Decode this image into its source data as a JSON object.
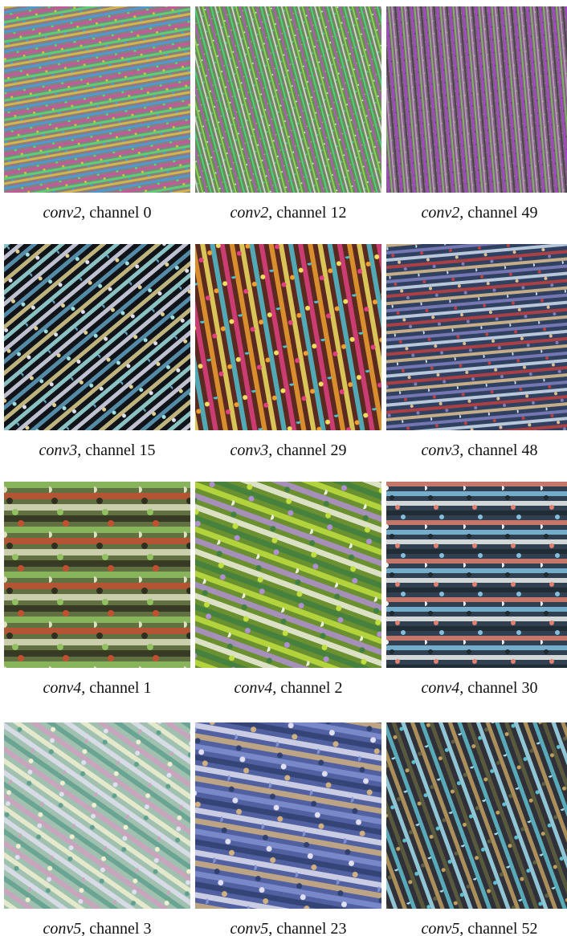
{
  "figure": {
    "panels": [
      {
        "layer": "conv2",
        "rest": ", channel 0"
      },
      {
        "layer": "conv2",
        "rest": ", channel 12"
      },
      {
        "layer": "conv2",
        "rest": ", channel 49"
      },
      {
        "layer": "conv3",
        "rest": ", channel 15"
      },
      {
        "layer": "conv3",
        "rest": ", channel 29"
      },
      {
        "layer": "conv3",
        "rest": ", channel 48"
      },
      {
        "layer": "conv4",
        "rest": ", channel 1"
      },
      {
        "layer": "conv4",
        "rest": ", channel 2"
      },
      {
        "layer": "conv4",
        "rest": ", channel 30"
      },
      {
        "layer": "conv5",
        "rest": ", channel 3"
      },
      {
        "layer": "conv5",
        "rest": ", channel 23"
      },
      {
        "layer": "conv5",
        "rest": ", channel 52"
      }
    ]
  }
}
